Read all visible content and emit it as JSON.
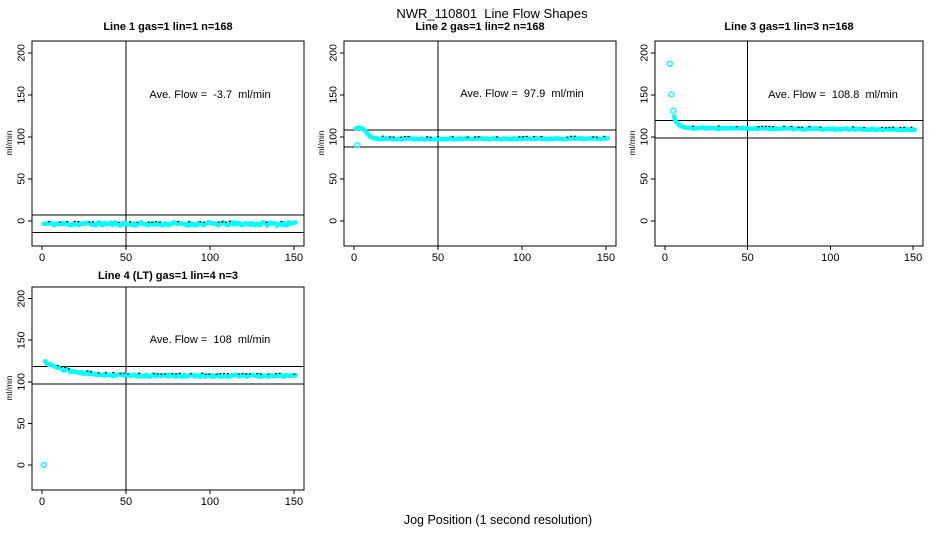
{
  "chart_data": {
    "type": "scatter",
    "title": "NWR_110801  Line Flow Shapes",
    "xlabel": "Jog Position (1 second resolution)",
    "point_color": "#00FFFF",
    "axis_color": "#000000",
    "grid": false,
    "legend_position": "none",
    "x_ticks": [
      0,
      50,
      100,
      150
    ],
    "y_ticks": [
      0,
      50,
      100,
      150,
      200
    ],
    "xlim": [
      0,
      150
    ],
    "ylim": [
      -30,
      214
    ],
    "vline_x": 50,
    "panels": [
      {
        "title": "Line 1 gas=1 lin=1 n=168",
        "ylabel": "ml/min",
        "ave_flow_text": "Ave. Flow =  -3.7  ml/min",
        "ave_flow_ml_min": -3.7,
        "n": 168,
        "hlines": [
          6.8,
          -14.2
        ],
        "vline_x": 50,
        "outlier_points": [],
        "transient_points": [],
        "steady_band": {
          "x_from": 1,
          "x_to": 151,
          "step": 1,
          "level": -3.7,
          "noise": 2.0,
          "drift": 0,
          "decay_amp": 0,
          "decay_tau": 1,
          "seed": 11
        }
      },
      {
        "title": "Line 2 gas=1 lin=2 n=168",
        "ylabel": "ml/min",
        "ave_flow_text": "Ave. Flow =  97.9  ml/min",
        "ave_flow_ml_min": 97.9,
        "n": 168,
        "hlines": [
          108.1,
          87.7
        ],
        "vline_x": 50,
        "outlier_points": [
          [
            2,
            90
          ]
        ],
        "transient_points": [
          [
            1,
            109.8
          ],
          [
            1.5,
            110.2
          ],
          [
            2,
            110.5
          ],
          [
            2.5,
            110.7
          ],
          [
            3,
            110.8
          ],
          [
            3.5,
            110.7
          ],
          [
            4,
            110.5
          ],
          [
            4.5,
            110.1
          ],
          [
            5,
            109.6
          ],
          [
            5.5,
            109.0
          ],
          [
            6,
            108.2
          ],
          [
            6.5,
            107.2
          ],
          [
            7,
            106.0
          ],
          [
            7.5,
            104.8
          ],
          [
            8,
            103.6
          ],
          [
            8.5,
            102.5
          ],
          [
            9,
            101.5
          ],
          [
            9.5,
            100.7
          ],
          [
            10,
            100.0
          ],
          [
            10.5,
            99.4
          ],
          [
            11,
            98.9
          ],
          [
            11.5,
            98.5
          ],
          [
            12,
            98.2
          ],
          [
            12.5,
            98.0
          ],
          [
            13,
            97.9
          ],
          [
            14,
            97.8
          ]
        ],
        "steady_band": {
          "x_from": 14,
          "x_to": 151,
          "step": 1,
          "level": 97.7,
          "noise": 0.8,
          "drift": 0,
          "decay_amp": 0,
          "decay_tau": 1,
          "seed": 22
        }
      },
      {
        "title": "Line 3 gas=1 lin=3 n=168",
        "ylabel": "ml/min",
        "ave_flow_text": "Ave. Flow =  108.8  ml/min",
        "ave_flow_ml_min": 108.8,
        "n": 168,
        "hlines": [
          119.2,
          98.4
        ],
        "vline_x": 50,
        "outlier_points": [
          [
            3,
            187
          ],
          [
            4,
            150.5
          ],
          [
            5,
            131
          ]
        ],
        "transient_points": [
          [
            5.5,
            124
          ],
          [
            6,
            121
          ],
          [
            6.5,
            119
          ],
          [
            7,
            117.5
          ],
          [
            7.5,
            116.3
          ],
          [
            8,
            115.3
          ],
          [
            8.5,
            114.4
          ],
          [
            9,
            113.7
          ],
          [
            9.5,
            113.1
          ],
          [
            10,
            112.6
          ],
          [
            10.5,
            112.2
          ],
          [
            11,
            111.8
          ],
          [
            11.5,
            111.5
          ],
          [
            12,
            111.2
          ],
          [
            13,
            110.8
          ],
          [
            14,
            110.5
          ]
        ],
        "steady_band": {
          "x_from": 14,
          "x_to": 151,
          "step": 1,
          "level": 110.3,
          "noise": 0.8,
          "drift": -1.8,
          "decay_amp": 0,
          "decay_tau": 1,
          "seed": 33
        }
      },
      {
        "title": "Line 4 (LT) gas=1 lin=4 n=3",
        "ylabel": "ml/min",
        "ave_flow_text": "Ave. Flow =  108  ml/min",
        "ave_flow_ml_min": 108,
        "n": 3,
        "hlines": [
          118.4,
          97.6
        ],
        "vline_x": 50,
        "outlier_points": [
          [
            1,
            0
          ]
        ],
        "transient_points": [],
        "steady_band": {
          "x_from": 2,
          "x_to": 151,
          "step": 1,
          "level": 107.3,
          "noise": 1.4,
          "drift": 0,
          "decay_amp": 16.5,
          "decay_tau": 14,
          "seed": 44
        }
      }
    ]
  }
}
